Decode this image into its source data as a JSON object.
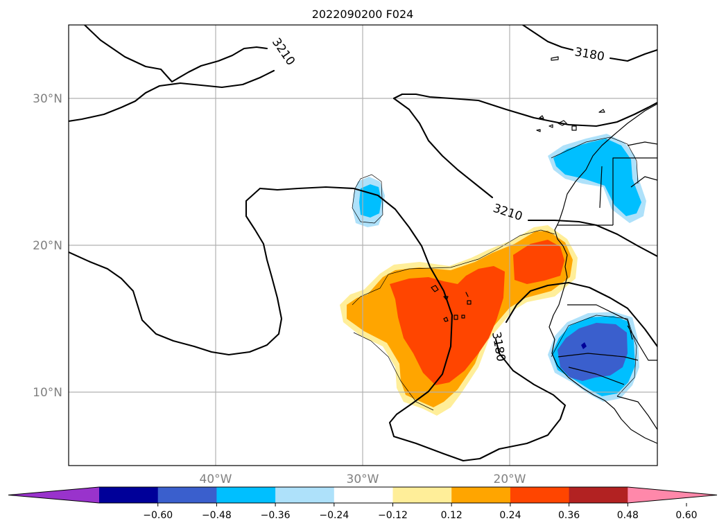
{
  "title": "2022090200 F024",
  "lat_labels": [
    "30°N",
    "20°N",
    "10°N"
  ],
  "lon_labels": [
    "40°W",
    "30°W",
    "20°W"
  ],
  "contour_labels": [
    "3210",
    "3180",
    "3210",
    "3180"
  ],
  "colorbar": {
    "ticks": [
      "−0.60",
      "−0.48",
      "−0.36",
      "−0.24",
      "−0.12",
      "0.12",
      "0.24",
      "0.36",
      "0.48",
      "0.60"
    ],
    "colors": [
      "#9933cc",
      "#000099",
      "#3a5fcd",
      "#00bfff",
      "#aee1fa",
      "#ffffff",
      "#ffee99",
      "#ffa500",
      "#ff4500",
      "#b22222",
      "#ff88aa"
    ]
  },
  "field_colors": {
    "light_blue": "#aee1fa",
    "blue": "#00bfff",
    "royal_blue": "#3a5fcd",
    "light_yellow": "#ffee99",
    "orange": "#ffa500",
    "red_orange": "#ff4500"
  }
}
